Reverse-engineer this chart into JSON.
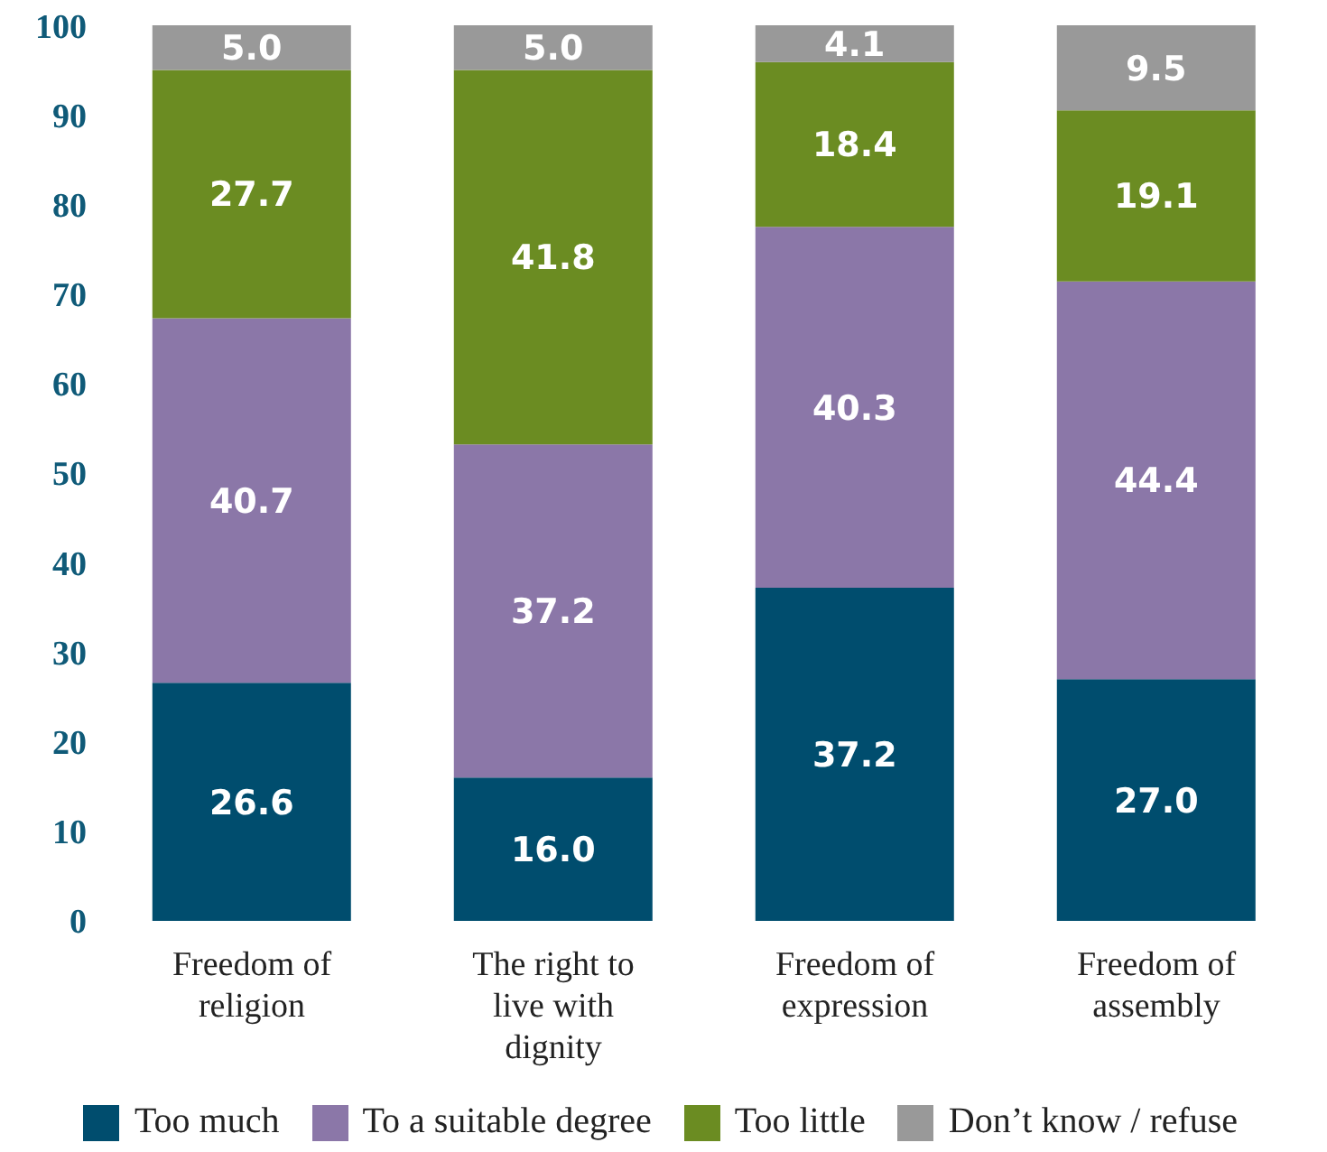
{
  "chart_data": {
    "type": "bar",
    "stacked": true,
    "categories": [
      "Freedom of religion",
      "The right to live with dignity",
      "Freedom of expression",
      "Freedom of assembly"
    ],
    "series": [
      {
        "name": "Too much",
        "color": "#004d6e",
        "values": [
          26.6,
          16.0,
          37.2,
          27.0
        ],
        "value_labels": [
          "26.6",
          "16.0",
          "37.2",
          "27.0"
        ]
      },
      {
        "name": "To a suitable degree",
        "color": "#8b77a8",
        "values": [
          40.7,
          37.2,
          40.3,
          44.4
        ],
        "value_labels": [
          "40.7",
          "37.2",
          "40.3",
          "44.4"
        ]
      },
      {
        "name": "Too little",
        "color": "#6b8c22",
        "values": [
          27.7,
          41.8,
          18.4,
          19.1
        ],
        "value_labels": [
          "27.7",
          "41.8",
          "18.4",
          "19.1"
        ]
      },
      {
        "name": "Don’t know / refuse",
        "color": "#999999",
        "values": [
          5.0,
          5.0,
          4.1,
          9.5
        ],
        "value_labels": [
          "5.0",
          "5.0",
          "4.1",
          "9.5"
        ]
      }
    ],
    "ylim": [
      0,
      100
    ],
    "yticks": [
      0,
      10,
      20,
      30,
      40,
      50,
      60,
      70,
      80,
      90,
      100
    ],
    "grid": false,
    "legend": "bottom"
  }
}
